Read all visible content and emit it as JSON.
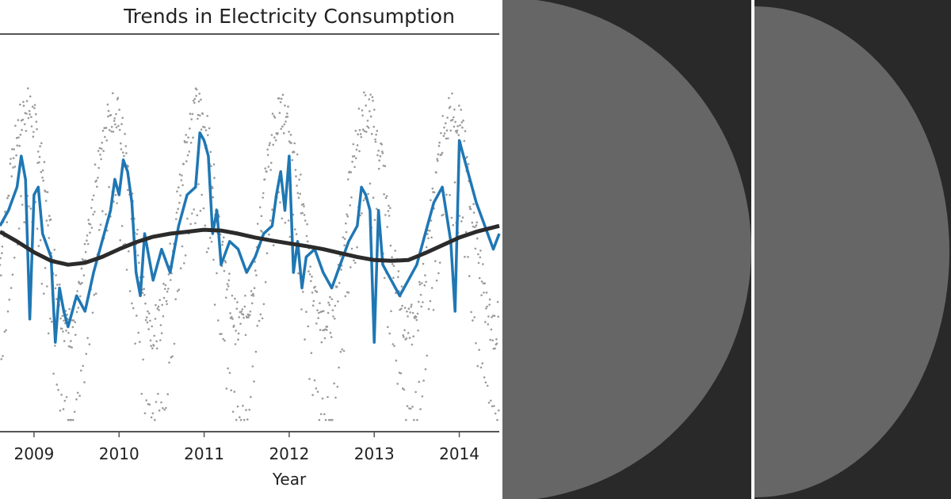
{
  "chart_data": {
    "type": "line",
    "title": "Trends in Electricity Consumption",
    "xlabel": "Year",
    "ylabel": "",
    "x_ticks": [
      "2009",
      "2010",
      "2011",
      "2012",
      "2013",
      "2014"
    ],
    "xlim": [
      2008.6,
      2014.47
    ],
    "ylim": [
      0,
      1
    ],
    "grid": false,
    "legend": "none",
    "colors": {
      "daily": "#9a9a9a",
      "rolling_7d": "#1f77b4",
      "trend": "#2b2b2b"
    },
    "series": [
      {
        "role": "daily-points",
        "style": "scatter",
        "start_year": 2008.6,
        "step_years": 0.00274,
        "count": 2142,
        "seasonal_cycle_years": 1.0,
        "peak_phase": 0.92,
        "description_values": {
          "winter_peak_level": 0.78,
          "summer_trough_level": 0.22
        }
      },
      {
        "role": "rolling-mean",
        "style": "line",
        "x": [
          2008.6,
          2008.7,
          2008.8,
          2008.85,
          2008.9,
          2008.95,
          2009.0,
          2009.05,
          2009.1,
          2009.2,
          2009.25,
          2009.3,
          2009.35,
          2009.4,
          2009.5,
          2009.6,
          2009.7,
          2009.8,
          2009.9,
          2009.95,
          2010.0,
          2010.05,
          2010.1,
          2010.15,
          2010.2,
          2010.25,
          2010.3,
          2010.4,
          2010.5,
          2010.6,
          2010.7,
          2010.8,
          2010.9,
          2010.95,
          2011.0,
          2011.05,
          2011.1,
          2011.15,
          2011.2,
          2011.3,
          2011.4,
          2011.5,
          2011.6,
          2011.7,
          2011.8,
          2011.85,
          2011.9,
          2011.95,
          2012.0,
          2012.05,
          2012.1,
          2012.15,
          2012.2,
          2012.3,
          2012.4,
          2012.5,
          2012.6,
          2012.7,
          2012.8,
          2012.85,
          2012.9,
          2012.95,
          2013.0,
          2013.05,
          2013.1,
          2013.2,
          2013.3,
          2013.4,
          2013.5,
          2013.6,
          2013.7,
          2013.8,
          2013.9,
          2013.95,
          2014.0,
          2014.05,
          2014.1,
          2014.2,
          2014.3,
          2014.4,
          2014.47
        ],
        "y": [
          0.52,
          0.56,
          0.62,
          0.7,
          0.64,
          0.28,
          0.6,
          0.62,
          0.5,
          0.44,
          0.22,
          0.36,
          0.3,
          0.26,
          0.34,
          0.3,
          0.4,
          0.48,
          0.56,
          0.64,
          0.6,
          0.69,
          0.66,
          0.58,
          0.4,
          0.34,
          0.5,
          0.38,
          0.46,
          0.4,
          0.52,
          0.6,
          0.62,
          0.76,
          0.74,
          0.7,
          0.5,
          0.56,
          0.42,
          0.48,
          0.46,
          0.4,
          0.44,
          0.5,
          0.52,
          0.6,
          0.66,
          0.56,
          0.7,
          0.4,
          0.48,
          0.36,
          0.44,
          0.46,
          0.4,
          0.36,
          0.42,
          0.48,
          0.52,
          0.62,
          0.6,
          0.56,
          0.22,
          0.56,
          0.42,
          0.38,
          0.34,
          0.38,
          0.42,
          0.5,
          0.58,
          0.62,
          0.48,
          0.3,
          0.74,
          0.7,
          0.66,
          0.58,
          0.52,
          0.46,
          0.5
        ]
      },
      {
        "role": "trend",
        "style": "line",
        "x": [
          2008.6,
          2008.8,
          2009.0,
          2009.2,
          2009.4,
          2009.6,
          2009.8,
          2010.0,
          2010.2,
          2010.4,
          2010.6,
          2010.8,
          2011.0,
          2011.2,
          2011.4,
          2011.6,
          2011.8,
          2012.0,
          2012.2,
          2012.4,
          2012.6,
          2012.8,
          2013.0,
          2013.2,
          2013.4,
          2013.6,
          2013.8,
          2014.0,
          2014.2,
          2014.47
        ],
        "y": [
          0.505,
          0.48,
          0.452,
          0.43,
          0.42,
          0.425,
          0.44,
          0.46,
          0.478,
          0.492,
          0.5,
          0.505,
          0.51,
          0.508,
          0.5,
          0.49,
          0.482,
          0.475,
          0.468,
          0.46,
          0.45,
          0.44,
          0.432,
          0.43,
          0.432,
          0.45,
          0.47,
          0.49,
          0.505,
          0.52
        ]
      }
    ]
  },
  "panels": {
    "colors": {
      "background": "#292929",
      "shape": "#666666",
      "divider": "#ffffff"
    }
  }
}
